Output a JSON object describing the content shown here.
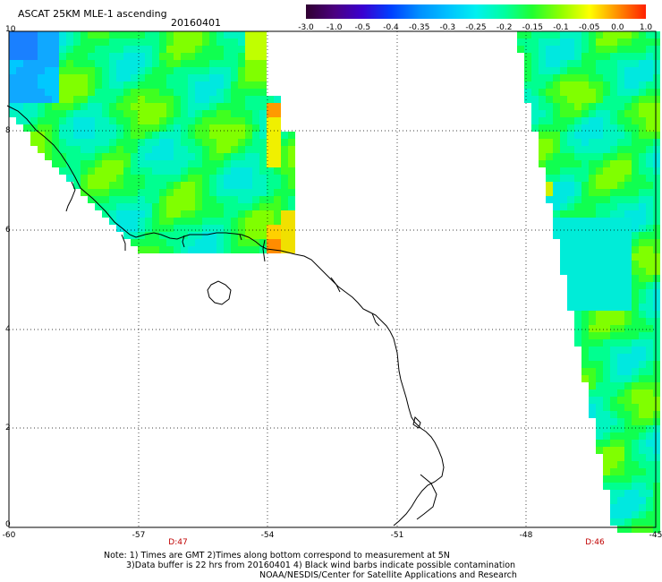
{
  "header": {
    "title": "ASCAT 25KM MLE-1 ascending",
    "date": "20160401"
  },
  "colorbar": {
    "labels": [
      "-3.0",
      "-1.0",
      "-0.5",
      "-0.4",
      "-0.35",
      "-0.3",
      "-0.25",
      "-0.2",
      "-0.15",
      "-0.1",
      "-0.05",
      "0.0",
      "1.0"
    ],
    "colors": [
      "#300030",
      "#4b0080",
      "#3a00d0",
      "#0040ff",
      "#0090ff",
      "#00c0ff",
      "#00f0f0",
      "#00ffa0",
      "#20ff30",
      "#90ff00",
      "#ffff00",
      "#ff9000",
      "#ff2000"
    ]
  },
  "axes": {
    "x_labels": [
      "-60",
      "-57",
      "-54",
      "-51",
      "-48",
      "-45"
    ],
    "y_labels": [
      "10",
      "8",
      "6",
      "4",
      "2",
      "0"
    ]
  },
  "pass_labels": [
    "D:47",
    "D:46"
  ],
  "notes": {
    "line1": "Note: 1) Times are GMT 2)Times along bottom correspond to measurement at 5N",
    "line2": "3)Data buffer is 22 hrs from 20160401 4) Black wind barbs indicate possible contamination",
    "line3": "NOAA/NESDIS/Center for Satellite Applications and Research"
  }
}
